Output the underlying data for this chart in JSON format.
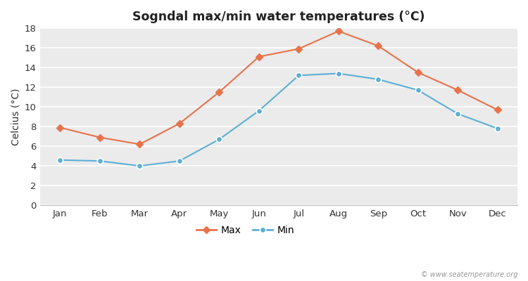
{
  "title": "Sogndal max/min water temperatures (°C)",
  "ylabel": "Celcius (°C)",
  "months": [
    "Jan",
    "Feb",
    "Mar",
    "Apr",
    "May",
    "Jun",
    "Jul",
    "Aug",
    "Sep",
    "Oct",
    "Nov",
    "Dec"
  ],
  "max_values": [
    7.9,
    6.9,
    6.2,
    8.3,
    11.5,
    15.1,
    15.9,
    17.7,
    16.2,
    13.5,
    11.7,
    9.7
  ],
  "min_values": [
    4.6,
    4.5,
    4.0,
    4.5,
    6.7,
    9.6,
    13.2,
    13.4,
    12.8,
    11.7,
    9.3,
    7.8
  ],
  "max_color": "#e8724a",
  "min_color": "#5bafd6",
  "fig_bg_color": "#ffffff",
  "plot_bg_color": "#ebebeb",
  "grid_color": "#ffffff",
  "ylim": [
    0,
    18
  ],
  "yticks": [
    0,
    2,
    4,
    6,
    8,
    10,
    12,
    14,
    16,
    18
  ],
  "watermark": "© www.seatemperature.org",
  "legend_labels": [
    "Max",
    "Min"
  ]
}
